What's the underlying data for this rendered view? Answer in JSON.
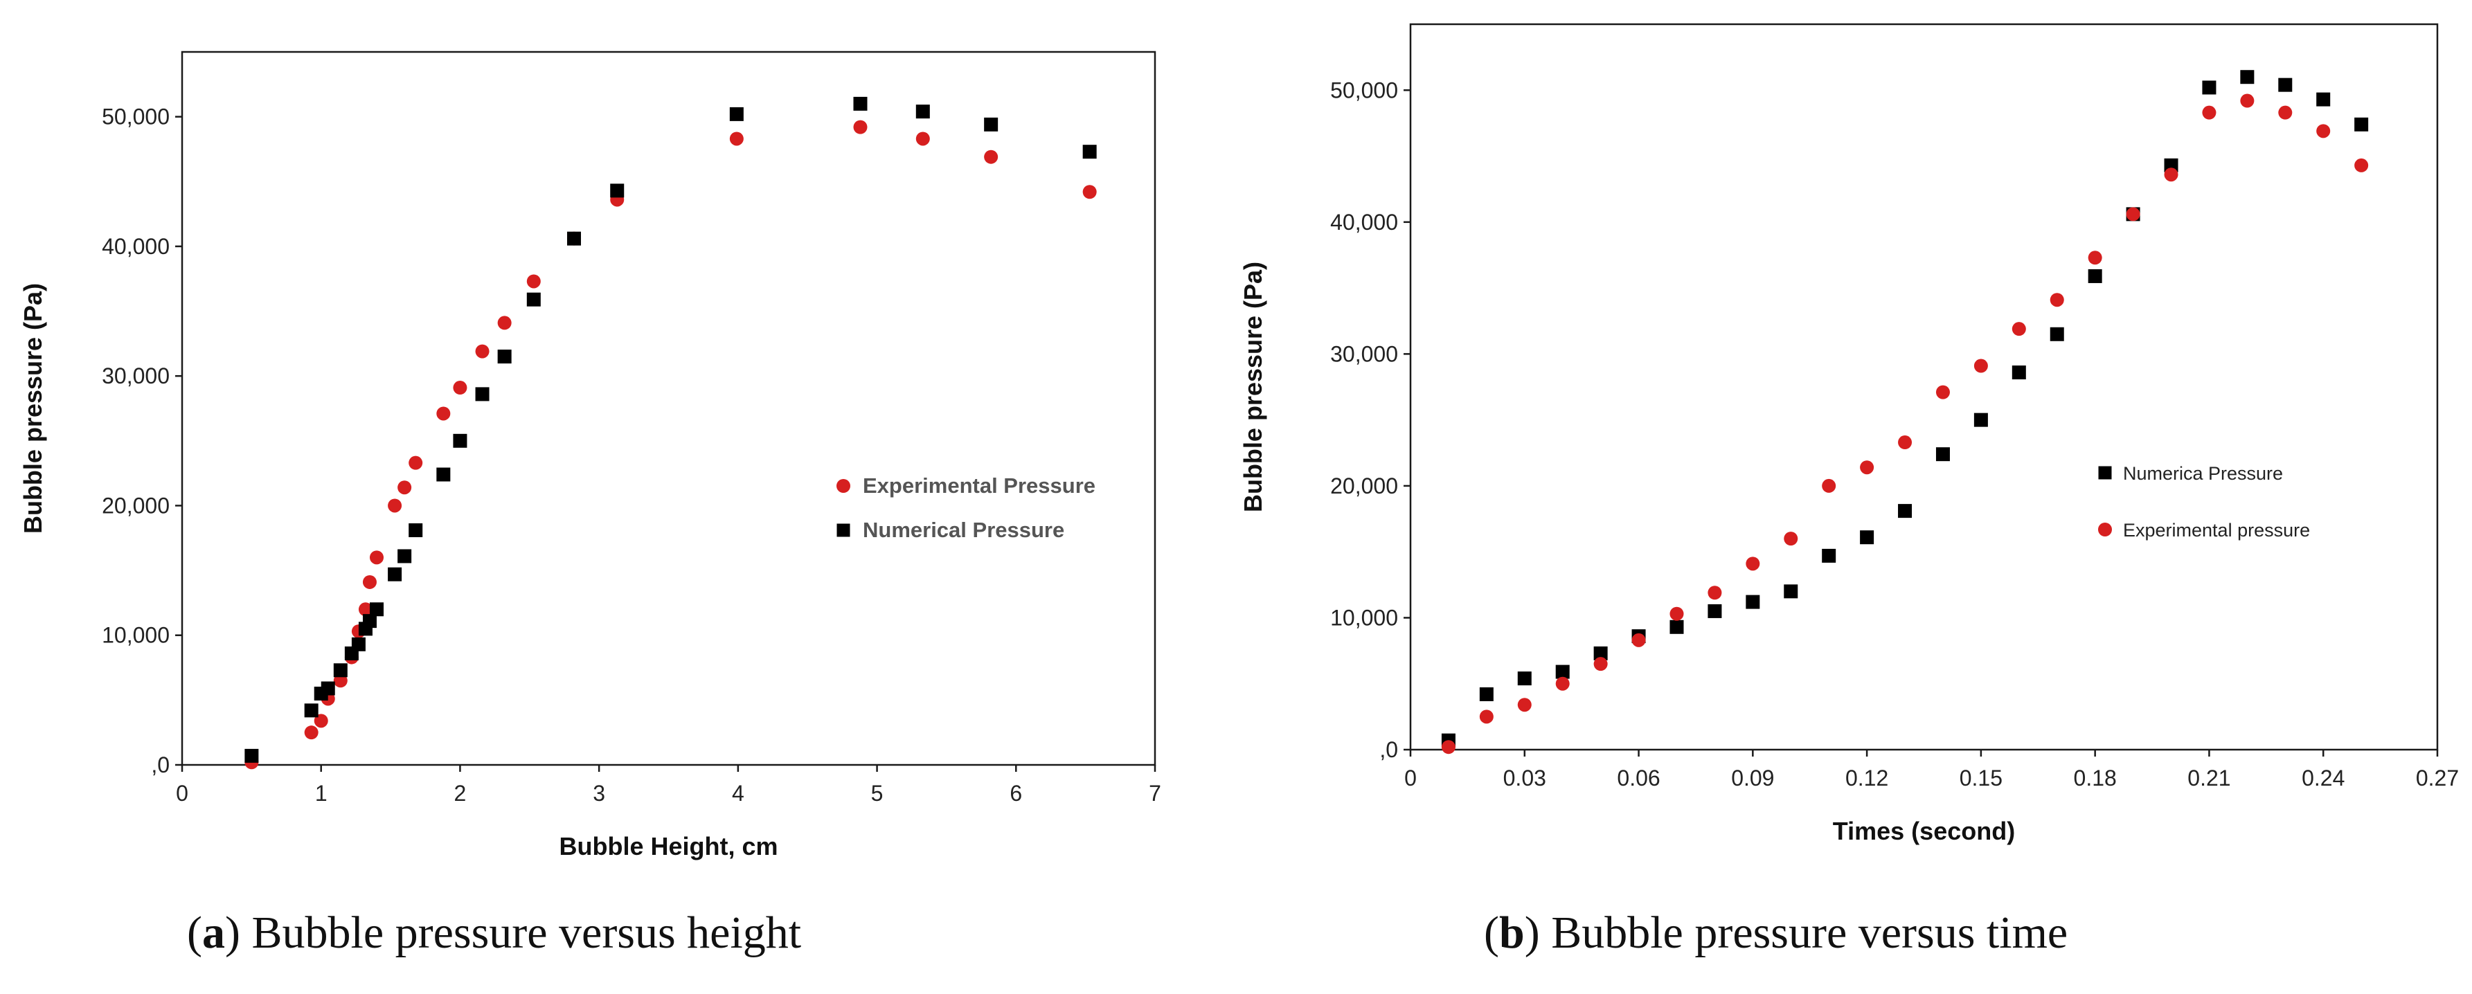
{
  "colors": {
    "experimental": "#d61f1f",
    "numerical": "#000000",
    "frame": "#1a1a1a"
  },
  "captions": [
    {
      "label": "a",
      "text": "Bubble pressure versus height"
    },
    {
      "label": "b",
      "text": "Bubble pressure versus time"
    }
  ],
  "chart_data": [
    {
      "type": "scatter",
      "id": "a",
      "title": "",
      "xlabel": "Bubble Height, cm",
      "ylabel": "Bubble pressure (Pa)",
      "xlim": [
        0,
        7
      ],
      "ylim": [
        0,
        55000
      ],
      "x_ticks": [
        0,
        1,
        2,
        3,
        4,
        5,
        6,
        7
      ],
      "x_tick_labels": [
        "0",
        "1",
        "2",
        "3",
        "4",
        "5",
        "6",
        "7"
      ],
      "y_ticks": [
        0,
        10000,
        20000,
        30000,
        40000,
        50000
      ],
      "y_tick_labels": [
        ",0",
        "10,000",
        "20,000",
        "30,000",
        "40,000",
        "50,000"
      ],
      "grid": false,
      "legend_position": "right",
      "series": [
        {
          "name": "Experimental Pressure",
          "marker": "circle",
          "points": [
            [
              0.5,
              200
            ],
            [
              0.93,
              2500
            ],
            [
              1.0,
              3400
            ],
            [
              1.05,
              5100
            ],
            [
              1.14,
              6500
            ],
            [
              1.22,
              8300
            ],
            [
              1.27,
              10300
            ],
            [
              1.32,
              12000
            ],
            [
              1.35,
              14100
            ],
            [
              1.4,
              16000
            ],
            [
              1.53,
              20000
            ],
            [
              1.6,
              21400
            ],
            [
              1.68,
              23300
            ],
            [
              1.88,
              27100
            ],
            [
              2.0,
              29100
            ],
            [
              2.16,
              31900
            ],
            [
              2.32,
              34100
            ],
            [
              2.53,
              37300
            ],
            [
              2.82,
              40600
            ],
            [
              3.13,
              43600
            ],
            [
              3.99,
              48300
            ],
            [
              4.88,
              49200
            ],
            [
              5.33,
              48300
            ],
            [
              5.82,
              46900
            ],
            [
              6.53,
              44200
            ]
          ]
        },
        {
          "name": "Numerical Pressure",
          "marker": "square",
          "points": [
            [
              0.5,
              700
            ],
            [
              0.93,
              4200
            ],
            [
              1.0,
              5500
            ],
            [
              1.05,
              5900
            ],
            [
              1.14,
              7300
            ],
            [
              1.22,
              8600
            ],
            [
              1.27,
              9300
            ],
            [
              1.32,
              10500
            ],
            [
              1.35,
              11100
            ],
            [
              1.4,
              12000
            ],
            [
              1.53,
              14700
            ],
            [
              1.6,
              16100
            ],
            [
              1.68,
              18100
            ],
            [
              1.88,
              22400
            ],
            [
              2.0,
              25000
            ],
            [
              2.16,
              28600
            ],
            [
              2.32,
              31500
            ],
            [
              2.53,
              35900
            ],
            [
              2.82,
              40600
            ],
            [
              3.13,
              44300
            ],
            [
              3.99,
              50200
            ],
            [
              4.88,
              51000
            ],
            [
              5.33,
              50400
            ],
            [
              5.82,
              49400
            ],
            [
              6.53,
              47300
            ]
          ]
        }
      ]
    },
    {
      "type": "scatter",
      "id": "b",
      "title": "",
      "xlabel": "Times (second)",
      "ylabel": "Bubble pressure (Pa)",
      "xlim": [
        0,
        0.27
      ],
      "ylim": [
        0,
        55000
      ],
      "x_ticks": [
        0,
        0.03,
        0.06,
        0.09,
        0.12,
        0.15,
        0.18,
        0.21,
        0.24,
        0.27
      ],
      "x_tick_labels": [
        "0",
        "0.03",
        "0.06",
        "0.09",
        "0.12",
        "0.15",
        "0.18",
        "0.21",
        "0.24",
        "0.27"
      ],
      "y_ticks": [
        0,
        10000,
        20000,
        30000,
        40000,
        50000
      ],
      "y_tick_labels": [
        ",0",
        "10,000",
        "20,000",
        "30,000",
        "40,000",
        "50,000"
      ],
      "grid": false,
      "legend_position": "right",
      "series": [
        {
          "name": "Numerica Pressure",
          "marker": "square",
          "points": [
            [
              0.01,
              700
            ],
            [
              0.02,
              4200
            ],
            [
              0.03,
              5400
            ],
            [
              0.04,
              5900
            ],
            [
              0.05,
              7300
            ],
            [
              0.06,
              8600
            ],
            [
              0.07,
              9300
            ],
            [
              0.08,
              10500
            ],
            [
              0.09,
              11200
            ],
            [
              0.1,
              12000
            ],
            [
              0.11,
              14700
            ],
            [
              0.12,
              16100
            ],
            [
              0.13,
              18100
            ],
            [
              0.14,
              22400
            ],
            [
              0.15,
              25000
            ],
            [
              0.16,
              28600
            ],
            [
              0.17,
              31500
            ],
            [
              0.18,
              35900
            ],
            [
              0.19,
              40600
            ],
            [
              0.2,
              44300
            ],
            [
              0.21,
              50200
            ],
            [
              0.22,
              51000
            ],
            [
              0.23,
              50400
            ],
            [
              0.24,
              49300
            ],
            [
              0.25,
              47400
            ]
          ]
        },
        {
          "name": "Experimental pressure",
          "marker": "circle",
          "points": [
            [
              0.01,
              200
            ],
            [
              0.02,
              2500
            ],
            [
              0.03,
              3400
            ],
            [
              0.04,
              5000
            ],
            [
              0.05,
              6500
            ],
            [
              0.06,
              8300
            ],
            [
              0.07,
              10300
            ],
            [
              0.08,
              11900
            ],
            [
              0.09,
              14100
            ],
            [
              0.1,
              16000
            ],
            [
              0.11,
              20000
            ],
            [
              0.12,
              21400
            ],
            [
              0.13,
              23300
            ],
            [
              0.14,
              27100
            ],
            [
              0.15,
              29100
            ],
            [
              0.16,
              31900
            ],
            [
              0.17,
              34100
            ],
            [
              0.18,
              37300
            ],
            [
              0.19,
              40600
            ],
            [
              0.2,
              43600
            ],
            [
              0.21,
              48300
            ],
            [
              0.22,
              49200
            ],
            [
              0.23,
              48300
            ],
            [
              0.24,
              46900
            ],
            [
              0.25,
              44300
            ]
          ]
        }
      ]
    }
  ]
}
